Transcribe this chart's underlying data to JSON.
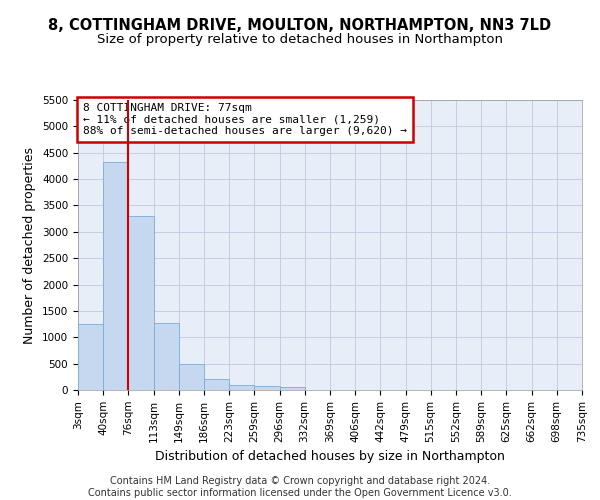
{
  "title_line1": "8, COTTINGHAM DRIVE, MOULTON, NORTHAMPTON, NN3 7LD",
  "title_line2": "Size of property relative to detached houses in Northampton",
  "xlabel": "Distribution of detached houses by size in Northampton",
  "ylabel": "Number of detached properties",
  "footer_line1": "Contains HM Land Registry data © Crown copyright and database right 2024.",
  "footer_line2": "Contains public sector information licensed under the Open Government Licence v3.0.",
  "annotation_line1": "8 COTTINGHAM DRIVE: 77sqm",
  "annotation_line2": "← 11% of detached houses are smaller (1,259)",
  "annotation_line3": "88% of semi-detached houses are larger (9,620) →",
  "bin_edges": [
    3,
    40,
    76,
    113,
    149,
    186,
    223,
    259,
    296,
    332,
    369,
    406,
    442,
    479,
    515,
    552,
    589,
    625,
    662,
    698,
    735
  ],
  "bin_labels": [
    "3sqm",
    "40sqm",
    "76sqm",
    "113sqm",
    "149sqm",
    "186sqm",
    "223sqm",
    "259sqm",
    "296sqm",
    "332sqm",
    "369sqm",
    "406sqm",
    "442sqm",
    "479sqm",
    "515sqm",
    "552sqm",
    "589sqm",
    "625sqm",
    "662sqm",
    "698sqm",
    "735sqm"
  ],
  "bar_heights": [
    1259,
    4330,
    3300,
    1280,
    490,
    215,
    95,
    75,
    55,
    0,
    0,
    0,
    0,
    0,
    0,
    0,
    0,
    0,
    0,
    0
  ],
  "bar_color": "#c5d8f0",
  "bar_edge_color": "#7aadd4",
  "vline_color": "#cc0000",
  "vline_x": 76,
  "ylim_max": 5500,
  "yticks": [
    0,
    500,
    1000,
    1500,
    2000,
    2500,
    3000,
    3500,
    4000,
    4500,
    5000,
    5500
  ],
  "fig_bg": "#ffffff",
  "axes_bg": "#e8eef8",
  "annotation_bg": "#ffffff",
  "annotation_edge": "#cc0000",
  "grid_color": "#c0c8dc",
  "title1_fontsize": 10.5,
  "title2_fontsize": 9.5,
  "tick_fontsize": 7.5,
  "ylabel_fontsize": 9,
  "xlabel_fontsize": 9,
  "annot_fontsize": 8,
  "footer_fontsize": 7
}
